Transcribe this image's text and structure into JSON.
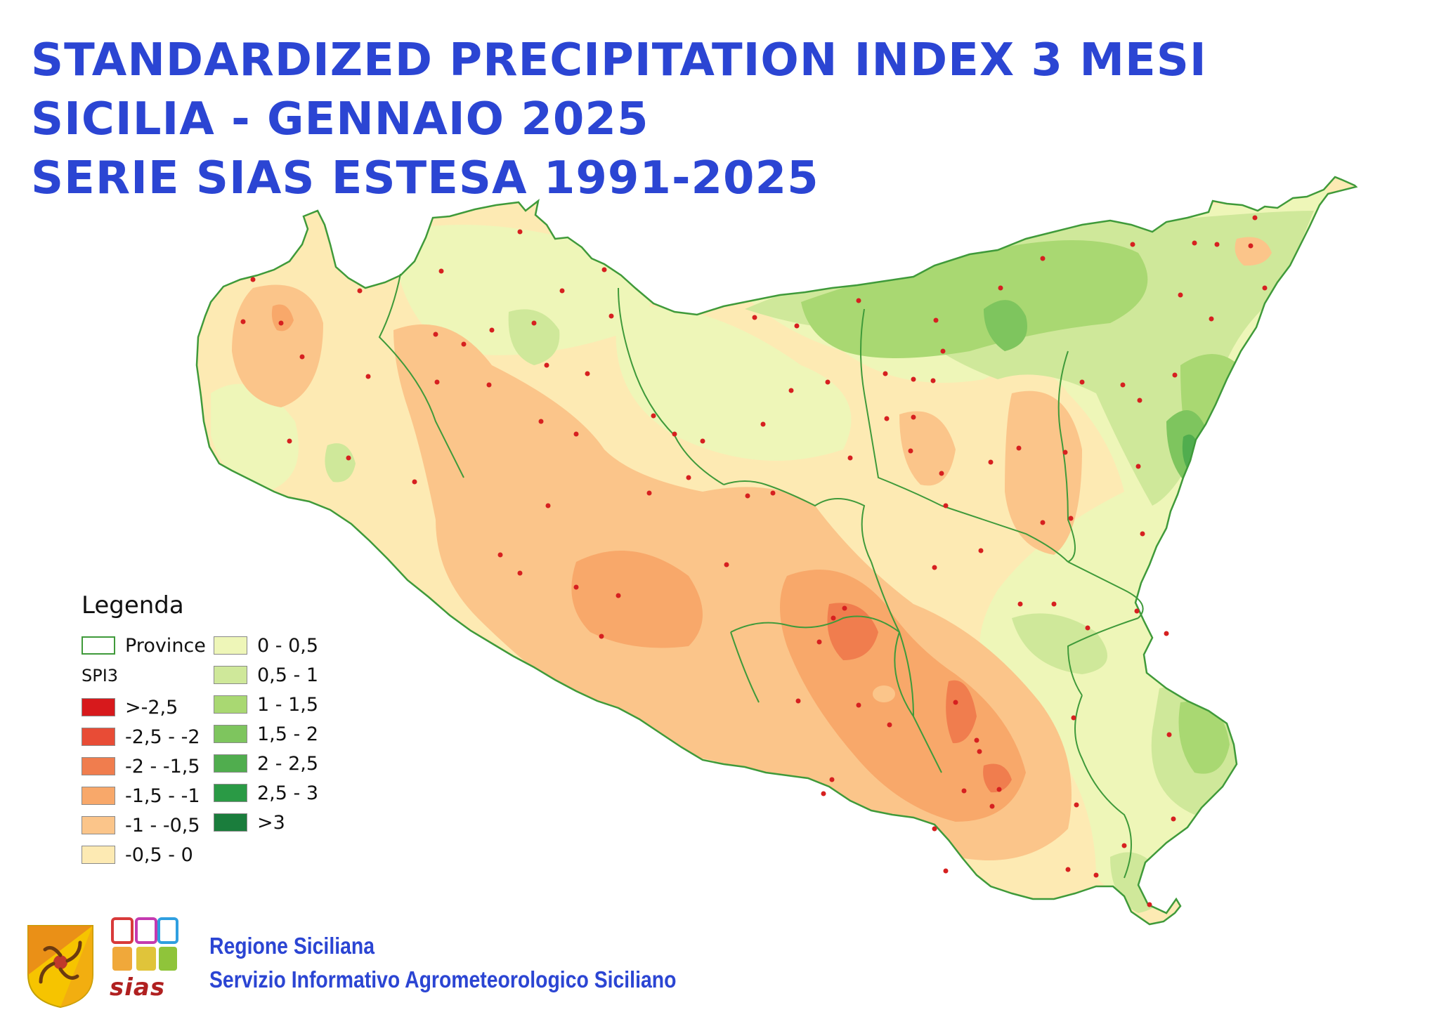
{
  "title": {
    "line1": "STANDARDIZED PRECIPITATION INDEX 3 MESI",
    "line2": "SICILIA - GENNAIO 2025",
    "line3": "SERIE SIAS ESTESA 1991-2025"
  },
  "legend": {
    "title": "Legenda",
    "province_label": "Province",
    "index_label": "SPI3",
    "classes": [
      {
        "label": ">-2,5",
        "color": "#d7191c"
      },
      {
        "label": "-2,5 - -2",
        "color": "#e84c36"
      },
      {
        "label": "-2 - -1,5",
        "color": "#f07d4e"
      },
      {
        "label": "-1,5 - -1",
        "color": "#f8a86a"
      },
      {
        "label": "-1 - -0,5",
        "color": "#fbc58a"
      },
      {
        "label": "-0,5 - 0",
        "color": "#fdeab3"
      },
      {
        "label": "0 - 0,5",
        "color": "#eef6b8"
      },
      {
        "label": "0,5 - 1",
        "color": "#cfe89a"
      },
      {
        "label": "1 - 1,5",
        "color": "#a9d872"
      },
      {
        "label": "1,5 - 2",
        "color": "#7ec55e"
      },
      {
        "label": "2 - 2,5",
        "color": "#50ad4e"
      },
      {
        "label": "2,5 - 3",
        "color": "#2a9a45"
      },
      {
        "label": ">3",
        "color": "#1a7d3c"
      }
    ]
  },
  "footer": {
    "line1": "Regione Siciliana",
    "line2": "Servizio Informativo Agrometeorologico Siciliano",
    "logo_text": "sias"
  },
  "colors": {
    "title": "#2b45d3",
    "province_border": "#3f9a3a",
    "station_dot": "#d62020"
  }
}
